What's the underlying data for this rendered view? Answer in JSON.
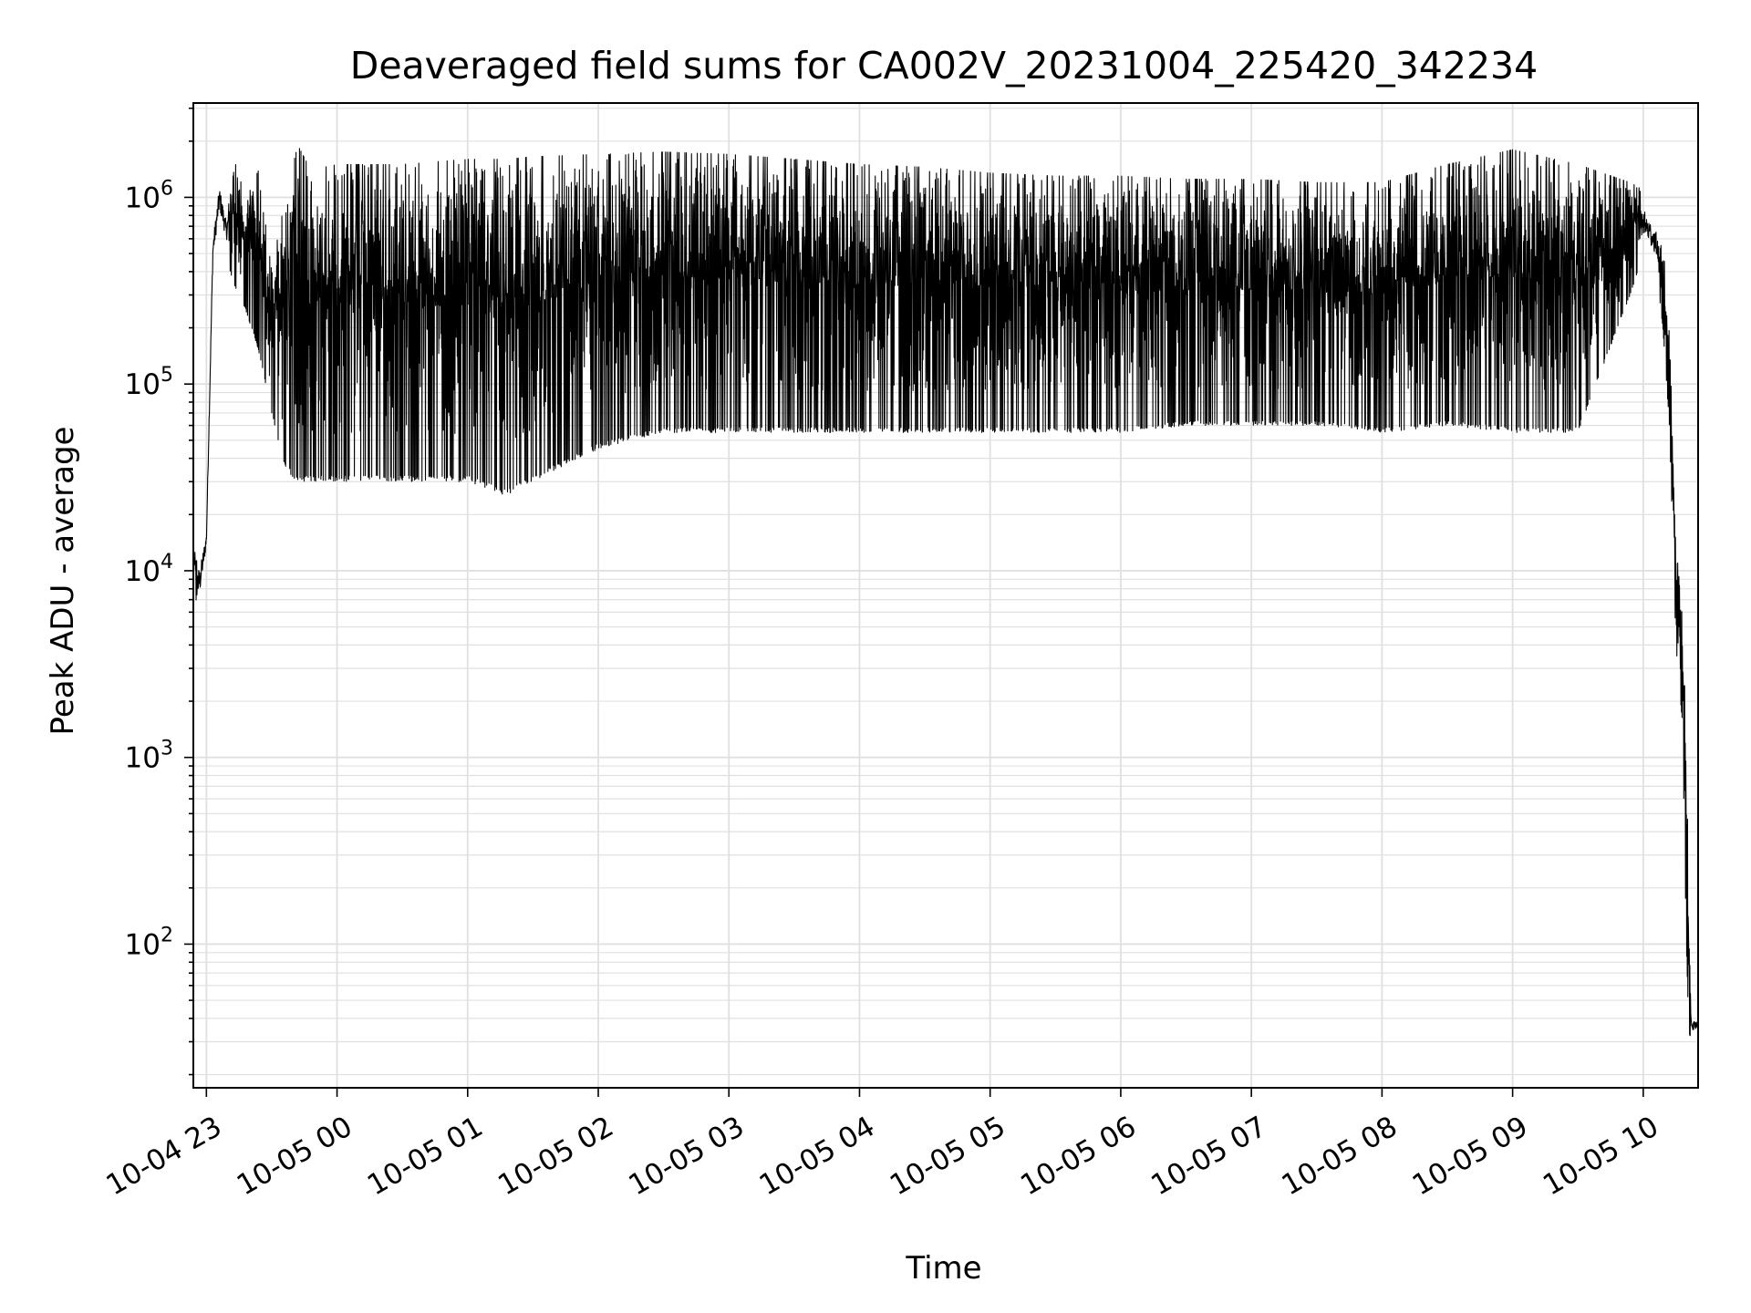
{
  "chart_data": {
    "type": "line",
    "title": "Deaveraged field sums for CA002V_20231004_225420_342234",
    "xlabel": "Time",
    "ylabel": "Peak ADU - average",
    "yscale": "log",
    "grid": true,
    "line_color": "#000000",
    "grid_color": "#e0e0e0",
    "x_ticks": [
      "10-04 23",
      "10-05 00",
      "10-05 01",
      "10-05 02",
      "10-05 03",
      "10-05 04",
      "10-05 05",
      "10-05 06",
      "10-05 07",
      "10-05 08",
      "10-05 09",
      "10-05 10"
    ],
    "x_tick_hours": [
      23,
      24,
      25,
      26,
      27,
      28,
      29,
      30,
      31,
      32,
      33,
      34
    ],
    "xlim_hours": [
      22.9,
      34.42
    ],
    "y_ticks": [
      {
        "base": "10",
        "exp": "2",
        "value": 100
      },
      {
        "base": "10",
        "exp": "3",
        "value": 1000
      },
      {
        "base": "10",
        "exp": "4",
        "value": 10000
      },
      {
        "base": "10",
        "exp": "5",
        "value": 100000
      },
      {
        "base": "10",
        "exp": "6",
        "value": 1000000
      }
    ],
    "ylim": [
      17,
      3200000
    ],
    "envelope": {
      "x_hours": [
        22.91,
        22.95,
        23.0,
        23.05,
        23.1,
        23.15,
        23.2,
        23.3,
        23.4,
        23.5,
        23.6,
        23.7,
        23.8,
        24.0,
        24.5,
        25.0,
        25.3,
        25.5,
        26.0,
        26.5,
        27.0,
        27.5,
        28.0,
        28.5,
        29.0,
        29.5,
        30.0,
        30.5,
        31.0,
        31.5,
        32.0,
        32.5,
        33.0,
        33.5,
        33.9,
        34.0,
        34.1,
        34.15,
        34.2,
        34.25,
        34.3,
        34.33,
        34.35,
        34.37,
        34.39,
        34.41
      ],
      "upper": [
        14000,
        13000,
        18000,
        700000,
        1400000,
        900000,
        1700000,
        1000000,
        1400000,
        400000,
        1000000,
        1900000,
        1400000,
        1500000,
        1500000,
        1600000,
        1600000,
        1650000,
        1700000,
        1750000,
        1700000,
        1600000,
        1500000,
        1450000,
        1350000,
        1300000,
        1300000,
        1250000,
        1250000,
        1200000,
        1200000,
        1500000,
        1800000,
        1500000,
        1200000,
        1100000,
        800000,
        600000,
        200000,
        13000,
        8000,
        1500,
        150,
        42,
        42,
        42
      ],
      "lower": [
        5000,
        6000,
        12000,
        400000,
        700000,
        500000,
        350000,
        250000,
        150000,
        70000,
        35000,
        30000,
        30000,
        30000,
        30000,
        30000,
        25000,
        30000,
        45000,
        55000,
        55000,
        55000,
        55000,
        55000,
        55000,
        55000,
        55000,
        60000,
        60000,
        60000,
        55000,
        60000,
        55000,
        55000,
        300000,
        500000,
        400000,
        200000,
        60000,
        4000,
        1500,
        100,
        32,
        32,
        32,
        32
      ]
    }
  }
}
